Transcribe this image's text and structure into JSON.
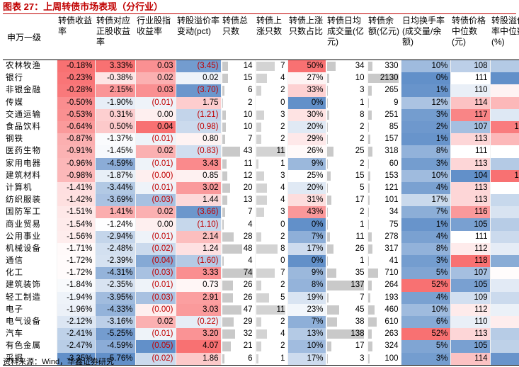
{
  "title": "图表 27：上周转债市场表现（分行业）",
  "source": "资料来源：Wind，华鑫证券研究",
  "headers": [
    "申万一级",
    "转债收益率",
    "转债对应正股收益率",
    "行业股指收益率",
    "转股溢价率变动(pct)",
    "转债总只数",
    "转债上涨只数",
    "转债上涨只数占比",
    "转债日均成交量(亿元)",
    "转债余额(亿元)",
    "日均换手率(成交量/余额)",
    "转债价格中位数(元)",
    "转股溢价率中位数(%)"
  ],
  "rows": [
    [
      "农林牧渔",
      "-0.18%",
      "3.33%",
      "0.03",
      "(3.45)",
      "14",
      "7",
      "50%",
      "34",
      "330",
      "10%",
      "108",
      "38"
    ],
    [
      "银行",
      "-0.23%",
      "-0.38%",
      "0.02",
      "0.02",
      "15",
      "4",
      "27%",
      "10",
      "2130",
      "0%",
      "111",
      "13"
    ],
    [
      "非银金融",
      "-0.28%",
      "2.15%",
      "0.03",
      "(3.70)",
      "6",
      "2",
      "33%",
      "3",
      "265",
      "1%",
      "110",
      "65"
    ],
    [
      "传媒",
      "-0.50%",
      "-1.90%",
      "(0.01)",
      "1.75",
      "2",
      "0",
      "0%",
      "1",
      "9",
      "12%",
      "114",
      "85"
    ],
    [
      "交通运输",
      "-0.53%",
      "0.31%",
      "0.00",
      "(1.21)",
      "10",
      "3",
      "30%",
      "8",
      "251",
      "3%",
      "117",
      "51"
    ],
    [
      "食品饮料",
      "-0.64%",
      "0.50%",
      "0.04",
      "(0.98)",
      "10",
      "2",
      "20%",
      "2",
      "85",
      "2%",
      "107",
      "105"
    ],
    [
      "钢铁",
      "-0.87%",
      "-1.37%",
      "(0.01)",
      "0.80",
      "7",
      "2",
      "29%",
      "2",
      "157",
      "1%",
      "113",
      "85"
    ],
    [
      "医药生物",
      "-0.91%",
      "-1.45%",
      "0.02",
      "(0.83)",
      "43",
      "11",
      "26%",
      "25",
      "318",
      "8%",
      "111",
      "61"
    ],
    [
      "家用电器",
      "-0.96%",
      "-4.59%",
      "(0.01)",
      "3.43",
      "11",
      "1",
      "9%",
      "2",
      "60",
      "3%",
      "113",
      "38"
    ],
    [
      "建筑材料",
      "-0.98%",
      "-1.87%",
      "(0.00)",
      "0.85",
      "12",
      "3",
      "25%",
      "15",
      "153",
      "10%",
      "104",
      "109"
    ],
    [
      "计算机",
      "-1.41%",
      "-3.44%",
      "(0.01)",
      "3.02",
      "20",
      "4",
      "20%",
      "5",
      "121",
      "4%",
      "113",
      "61"
    ],
    [
      "纺织服装",
      "-1.42%",
      "-3.69%",
      "(0.03)",
      "1.44",
      "13",
      "4",
      "31%",
      "17",
      "101",
      "17%",
      "113",
      "44"
    ],
    [
      "国防军工",
      "-1.51%",
      "1.41%",
      "0.02",
      "(3.66)",
      "7",
      "3",
      "43%",
      "2",
      "34",
      "7%",
      "116",
      "49"
    ],
    [
      "商业贸易",
      "-1.54%",
      "-1.24%",
      "0.00",
      "(1.10)",
      "4",
      "0",
      "0%",
      "1",
      "75",
      "1%",
      "105",
      "39"
    ],
    [
      "公用事业",
      "-1.56%",
      "-2.94%",
      "(0.01)",
      "2.14",
      "28",
      "2",
      "7%",
      "11",
      "278",
      "4%",
      "111",
      "45"
    ],
    [
      "机械设备",
      "-1.71%",
      "-2.48%",
      "(0.02)",
      "1.24",
      "48",
      "8",
      "17%",
      "26",
      "317",
      "8%",
      "112",
      "53"
    ],
    [
      "通信",
      "-1.72%",
      "-2.39%",
      "(0.04)",
      "(1.60)",
      "4",
      "0",
      "0%",
      "1",
      "41",
      "3%",
      "118",
      "25"
    ],
    [
      "化工",
      "-1.72%",
      "-4.31%",
      "(0.03)",
      "3.33",
      "74",
      "7",
      "9%",
      "35",
      "710",
      "5%",
      "107",
      "62"
    ],
    [
      "建筑装饰",
      "-1.84%",
      "-2.35%",
      "(0.01)",
      "0.73",
      "26",
      "2",
      "8%",
      "137",
      "264",
      "52%",
      "105",
      "52"
    ],
    [
      "轻工制造",
      "-1.94%",
      "-3.95%",
      "(0.03)",
      "2.91",
      "26",
      "5",
      "19%",
      "7",
      "193",
      "4%",
      "109",
      "45"
    ],
    [
      "电子",
      "-1.96%",
      "-4.33%",
      "(0.00)",
      "3.03",
      "47",
      "11",
      "23%",
      "45",
      "460",
      "10%",
      "112",
      "55"
    ],
    [
      "电气设备",
      "-2.12%",
      "-3.16%",
      "0.02",
      "(0.22)",
      "29",
      "2",
      "7%",
      "38",
      "610",
      "6%",
      "110",
      "67"
    ],
    [
      "汽车",
      "-2.41%",
      "-5.25%",
      "(0.01)",
      "3.20",
      "32",
      "4",
      "13%",
      "138",
      "263",
      "52%",
      "113",
      "39"
    ],
    [
      "有色金属",
      "-2.47%",
      "-4.59%",
      "(0.05)",
      "4.07",
      "21",
      "2",
      "10%",
      "17",
      "324",
      "5%",
      "105",
      "41"
    ],
    [
      "采掘",
      "-3.35%",
      "-5.76%",
      "(0.02)",
      "1.86",
      "6",
      "1",
      "17%",
      "3",
      "100",
      "3%",
      "114",
      "15"
    ]
  ],
  "colors": {
    "accent": "#c00000",
    "pos_base": "#f8696b",
    "neg_base": "#5a8ac6",
    "bar": "#c9c9c9"
  }
}
